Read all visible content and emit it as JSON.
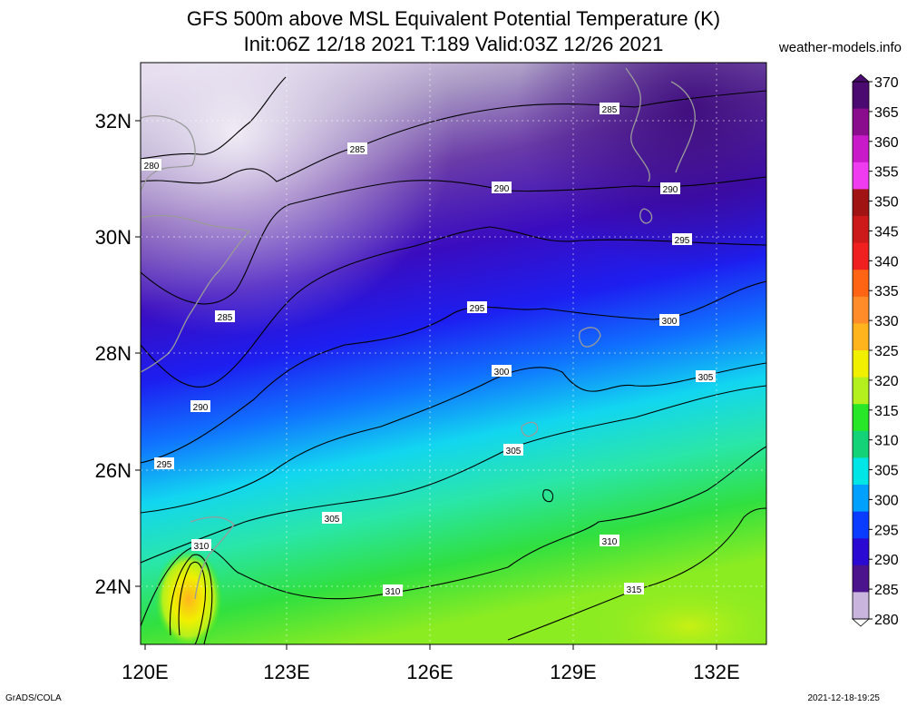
{
  "title_line1": "GFS 500m above MSL Equivalent Potential Temperature (K)",
  "title_line2": "Init:06Z 12/18 2021 T:189 Valid:03Z 12/26 2021",
  "site": "weather-models.info",
  "credit": "GrADS/COLA",
  "timestamp": "2021-12-18-19:25",
  "map": {
    "lon_ticks": [
      "120E",
      "123E",
      "126E",
      "129E",
      "132E"
    ],
    "lat_ticks": [
      "32N",
      "30N",
      "28N",
      "26N",
      "24N"
    ],
    "contour_labels": [
      "280",
      "285",
      "285",
      "285",
      "290",
      "290",
      "290",
      "295",
      "295",
      "295",
      "300",
      "300",
      "305",
      "305",
      "305",
      "310",
      "310",
      "310",
      "315"
    ]
  },
  "colorbar": {
    "labels": [
      "370",
      "365",
      "360",
      "355",
      "350",
      "345",
      "340",
      "335",
      "330",
      "325",
      "320",
      "315",
      "310",
      "305",
      "300",
      "295",
      "290",
      "285",
      "280"
    ],
    "colors": [
      "#4b0a70",
      "#8a0d8d",
      "#c81ac8",
      "#f03cf0",
      "#a01414",
      "#cc1a1a",
      "#f02020",
      "#ff6414",
      "#ff8c28",
      "#ffb41e",
      "#f0f000",
      "#b4f01e",
      "#28e628",
      "#14d278",
      "#00e6e6",
      "#00a0ff",
      "#0a3cff",
      "#2a0ad2",
      "#4b148c",
      "#c8b4dc"
    ]
  }
}
